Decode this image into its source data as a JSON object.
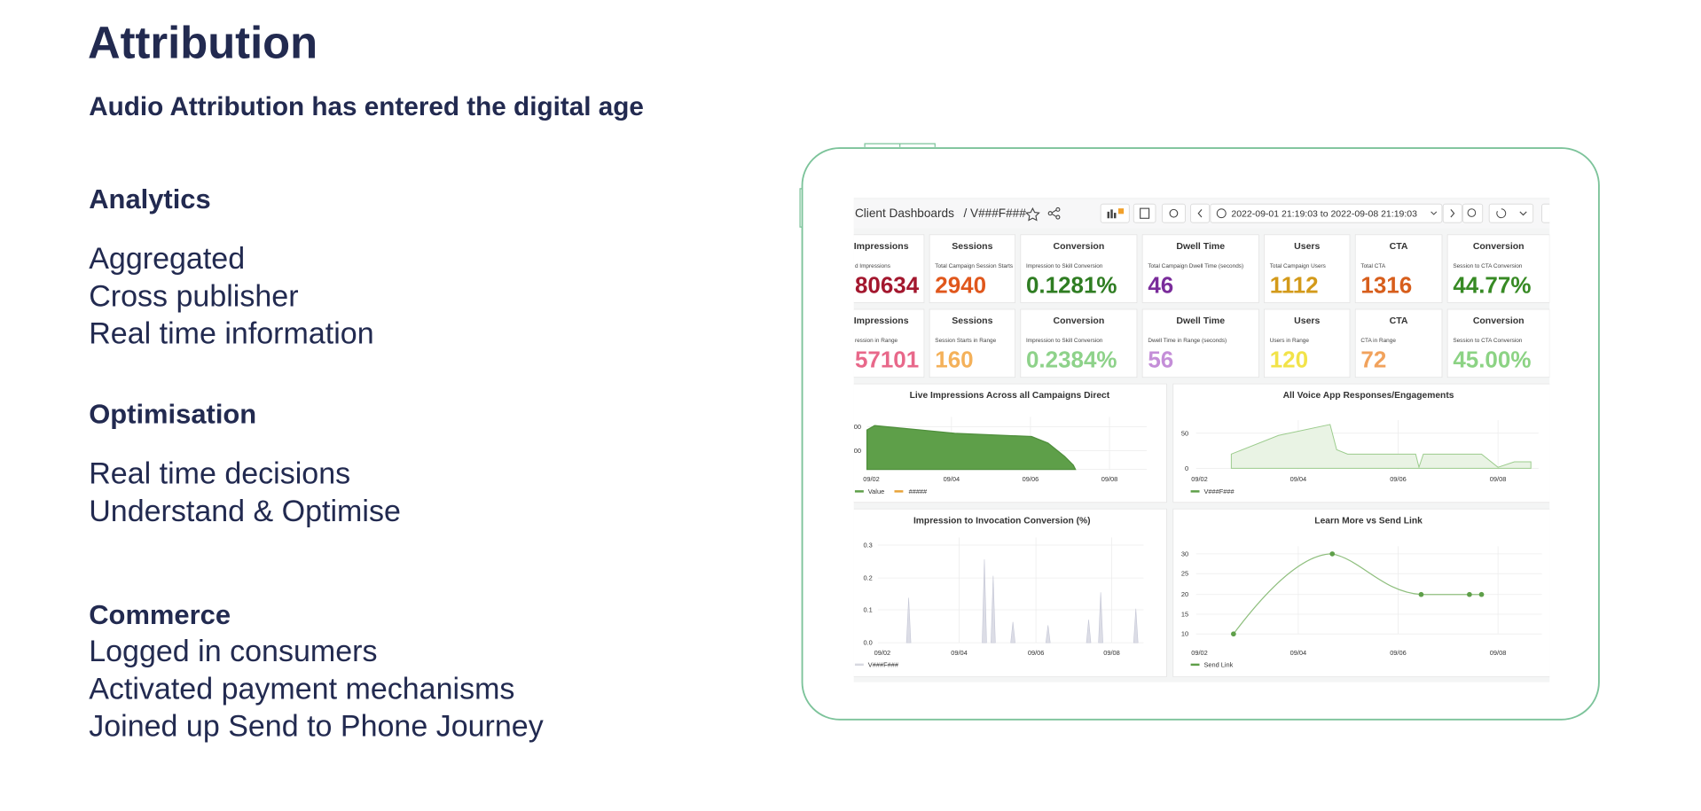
{
  "title": "Attribution",
  "subtitle": "Audio Attribution has entered the digital age",
  "sections": [
    {
      "heading": "Analytics",
      "items": [
        "Aggregated",
        "Cross publisher",
        "Real time information"
      ]
    },
    {
      "heading": "Optimisation",
      "items": [
        "Real time decisions",
        "Understand & Optimise"
      ]
    },
    {
      "heading": "Commerce",
      "items": [
        "Logged in consumers",
        "Activated payment mechanisms",
        "Joined up Send to Phone Journey"
      ]
    }
  ],
  "dashboard": {
    "breadcrumb": "Client Dashboards",
    "name": "/ V###F###",
    "time_range": "2022-09-01 21:19:03 to 2022-09-08 21:19:03",
    "stats": [
      [
        {
          "title": "Impressions",
          "subtitle": "d Impressions",
          "value": "80634",
          "color": "#a3172e"
        },
        {
          "title": "Sessions",
          "subtitle": "Total Campaign Session Starts",
          "value": "2940",
          "color": "#e0571c"
        },
        {
          "title": "Conversion",
          "subtitle": "Impression to Skill Conversion",
          "value": "0.1281%",
          "color": "#2f7d22"
        },
        {
          "title": "Dwell Time",
          "subtitle": "Total Campaign Dwell Time (seconds)",
          "value": "46",
          "color": "#7a2c9b"
        },
        {
          "title": "Users",
          "subtitle": "Total Campaign Users",
          "value": "1112",
          "color": "#d39a1a"
        },
        {
          "title": "CTA",
          "subtitle": "Total CTA",
          "value": "1316",
          "color": "#d75e1c"
        },
        {
          "title": "Conversion",
          "subtitle": "Session to CTA Conversion",
          "value": "44.77%",
          "color": "#378a24"
        }
      ],
      [
        {
          "title": "Impressions",
          "subtitle": "ression in Range",
          "value": "57101",
          "color": "#e8688a"
        },
        {
          "title": "Sessions",
          "subtitle": "Session Starts in Range",
          "value": "160",
          "color": "#f4b15a"
        },
        {
          "title": "Conversion",
          "subtitle": "Impression to Skill Conversion",
          "value": "0.2384%",
          "color": "#8ed28a"
        },
        {
          "title": "Dwell Time",
          "subtitle": "Dwell Time in Range (seconds)",
          "value": "56",
          "color": "#c48ed8"
        },
        {
          "title": "Users",
          "subtitle": "Users in Range",
          "value": "120",
          "color": "#f2e349"
        },
        {
          "title": "CTA",
          "subtitle": "CTA in Range",
          "value": "72",
          "color": "#f1a25c"
        },
        {
          "title": "Conversion",
          "subtitle": "Session to CTA Conversion",
          "value": "45.00%",
          "color": "#8cd384"
        }
      ]
    ],
    "panels": [
      {
        "title": "Live Impressions Across all Campaigns Direct",
        "yticks": [
          "00",
          "00"
        ],
        "xticks": [
          "09/02",
          "09/04",
          "09/06",
          "09/08"
        ],
        "legend": [
          "Value",
          "#####"
        ]
      },
      {
        "title": "All Voice App Responses/Engagements",
        "yticks": [
          "50",
          "0"
        ],
        "xticks": [
          "09/02",
          "09/04",
          "09/06",
          "09/08"
        ],
        "legend": [
          "V###F###"
        ]
      },
      {
        "title": "Impression to Invocation Conversion (%)",
        "yticks": [
          "0.3",
          "0.2",
          "0.1",
          "0.0"
        ],
        "xticks": [
          "09/02",
          "09/04",
          "09/06",
          "09/08"
        ],
        "legend": [
          "V###F###"
        ]
      },
      {
        "title": "Learn More vs Send Link",
        "yticks": [
          "30",
          "25",
          "20",
          "15",
          "10"
        ],
        "xticks": [
          "09/02",
          "09/04",
          "09/06",
          "09/08"
        ],
        "legend": [
          "Send Link"
        ]
      }
    ]
  }
}
